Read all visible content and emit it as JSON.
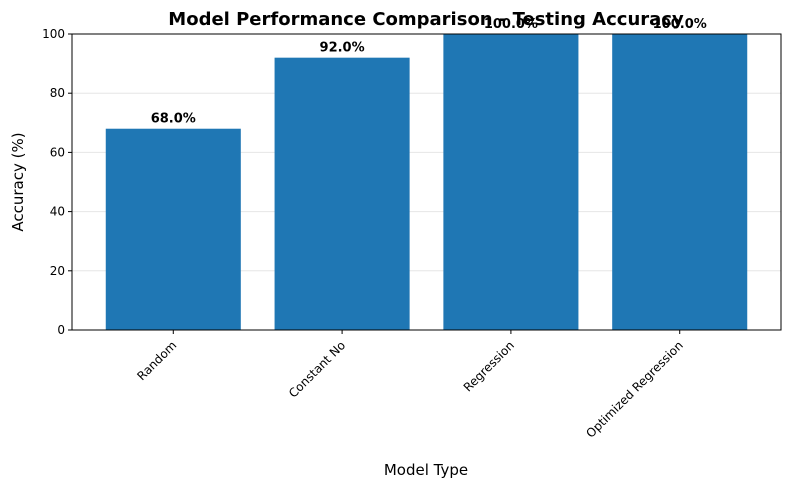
{
  "chart_data": {
    "type": "bar",
    "title": "Model Performance Comparison - Testing Accuracy",
    "xlabel": "Model Type",
    "ylabel": "Accuracy (%)",
    "categories": [
      "Random",
      "Constant No",
      "Regression",
      "Optimized Regression"
    ],
    "values": [
      68.0,
      92.0,
      100.0,
      100.0
    ],
    "data_labels": [
      "68.0%",
      "92.0%",
      "100.0%",
      "100.0%"
    ],
    "ylim": [
      0,
      100
    ],
    "yticks": [
      0,
      20,
      40,
      60,
      80,
      100
    ],
    "ytick_labels": [
      "0",
      "20",
      "40",
      "60",
      "80",
      "100"
    ],
    "grid": "y",
    "bar_color": "#1f77b4"
  }
}
